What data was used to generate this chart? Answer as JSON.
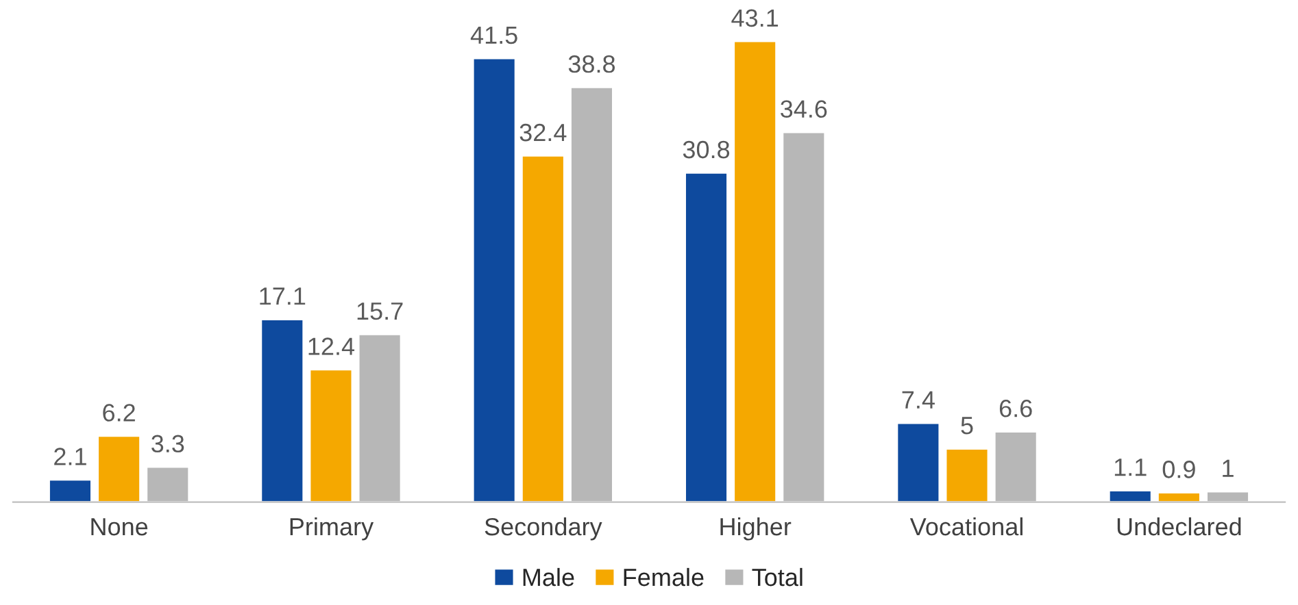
{
  "chart_data": {
    "type": "bar",
    "categories": [
      "None",
      "Primary",
      "Secondary",
      "Higher",
      "Vocational",
      "Undeclared"
    ],
    "series": [
      {
        "name": "Male",
        "color": "#0e4a9e",
        "values": [
          2.1,
          17.1,
          41.5,
          30.8,
          7.4,
          1.1
        ]
      },
      {
        "name": "Female",
        "color": "#f5a800",
        "values": [
          6.2,
          12.4,
          32.4,
          43.1,
          5,
          0.9
        ]
      },
      {
        "name": "Total",
        "color": "#b7b7b7",
        "values": [
          3.3,
          15.7,
          38.8,
          34.6,
          6.6,
          1
        ]
      }
    ],
    "data_labels": true,
    "legend": "bottom",
    "grid": false
  }
}
